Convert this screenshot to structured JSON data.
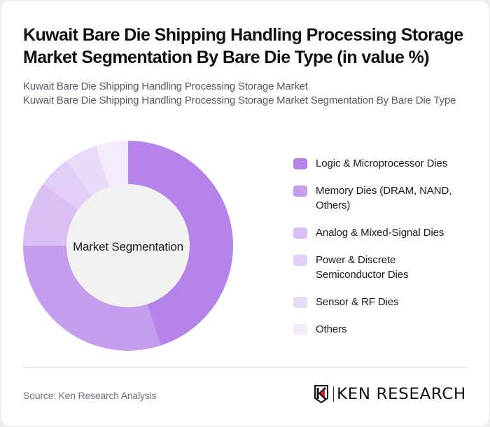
{
  "header": {
    "title": "Kuwait Bare Die Shipping Handling Processing Storage Market Segmentation By Bare Die Type (in value %)",
    "subtitle_line1": "Kuwait Bare Die Shipping Handling Processing Storage Market",
    "subtitle_line2": "Kuwait Bare Die Shipping Handling Processing Storage Market Segmentation By Bare Die Type"
  },
  "chart": {
    "center_label": "Market Segmentation",
    "center_fill": "#F2F2F2"
  },
  "legend": [
    {
      "label": "Logic & Microprocessor Dies",
      "color": "#B583EA"
    },
    {
      "label": "Memory Dies (DRAM, NAND, Others)",
      "color": "#C59DEE"
    },
    {
      "label": "Analog & Mixed-Signal Dies",
      "color": "#DABFF5"
    },
    {
      "label": "Power & Discrete Semiconductor Dies",
      "color": "#E3CEF7"
    },
    {
      "label": "Sensor & RF Dies",
      "color": "#EADAF9"
    },
    {
      "label": "Others",
      "color": "#F3EBFC"
    }
  ],
  "footer": {
    "source": "Source: Ken Research Analysis",
    "logo_text": "KEN RESEARCH"
  },
  "chart_data": {
    "type": "pie",
    "subtype": "donut",
    "title": "Kuwait Bare Die Shipping Handling Processing Storage Market Segmentation By Bare Die Type (in value %)",
    "center_text": "Market Segmentation",
    "categories": [
      "Logic & Microprocessor Dies",
      "Memory Dies (DRAM, NAND, Others)",
      "Analog & Mixed-Signal Dies",
      "Power & Discrete Semiconductor Dies",
      "Sensor & RF Dies",
      "Others"
    ],
    "values": [
      45,
      30,
      10,
      5,
      5,
      5
    ],
    "colors": [
      "#B583EA",
      "#C59DEE",
      "#DABFF5",
      "#E3CEF7",
      "#EADAF9",
      "#F3EBFC"
    ],
    "unit": "%",
    "legend_position": "right",
    "start_angle": "12 o'clock, clockwise"
  }
}
